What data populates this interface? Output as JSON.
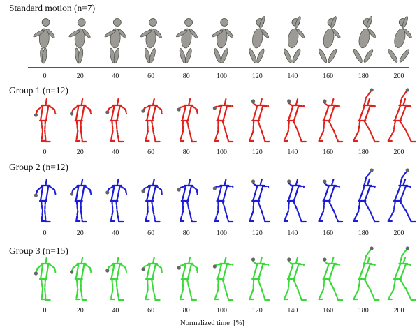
{
  "rows": [
    {
      "title": "Standard motion (n=7)",
      "color": "#8a8a85",
      "style": "mannequin"
    },
    {
      "title": "Group 1 (n=12)",
      "color": "#e0201b",
      "style": "stick"
    },
    {
      "title": "Group 2 (n=12)",
      "color": "#1c1cd6",
      "style": "stick"
    },
    {
      "title": "Group 3 (n=15)",
      "color": "#3ad93a",
      "style": "stick"
    }
  ],
  "ticks": [
    "0",
    "20",
    "40",
    "60",
    "80",
    "100",
    "120",
    "140",
    "160",
    "180",
    "200"
  ],
  "xlabel": "Normalized time  [%]"
}
